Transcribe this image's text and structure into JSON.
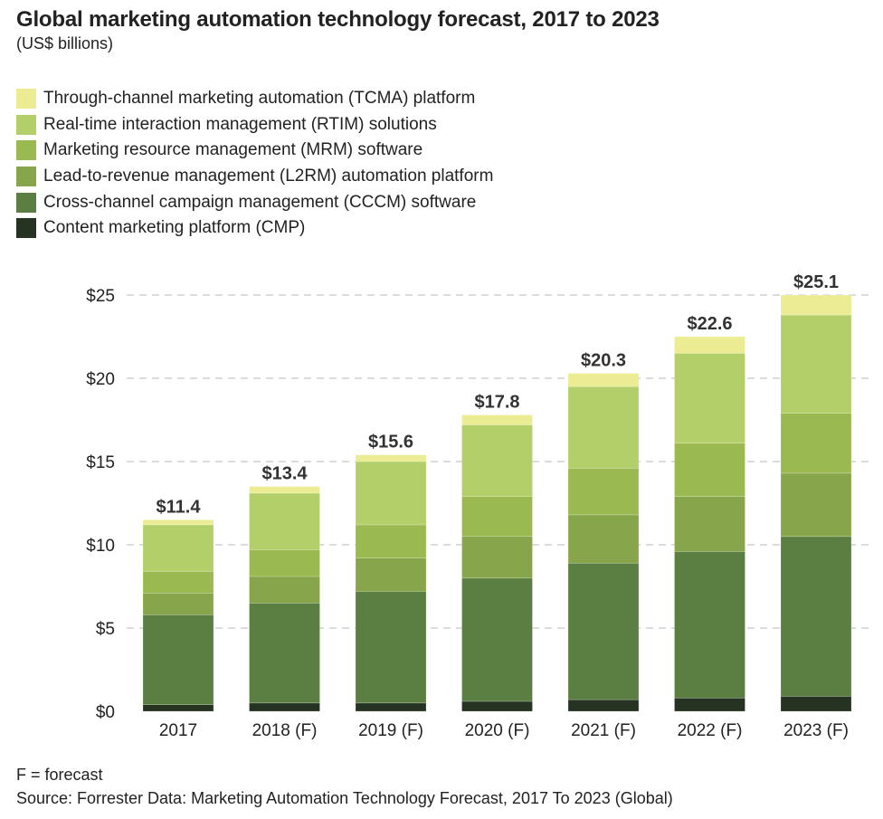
{
  "chart_data": {
    "type": "bar",
    "stacked": true,
    "title": "Global marketing automation technology forecast, 2017 to 2023",
    "subtitle": "(US$ billions)",
    "xlabel": "",
    "ylabel": "",
    "ylim": [
      0,
      25
    ],
    "yticks": [
      0,
      5,
      10,
      15,
      20,
      25
    ],
    "ytick_labels": [
      "$0",
      "$5",
      "$10",
      "$15",
      "$20",
      "$25"
    ],
    "grid": true,
    "legend_position": "top-left",
    "categories": [
      "2017",
      "2018 (F)",
      "2019 (F)",
      "2020 (F)",
      "2021 (F)",
      "2022 (F)",
      "2023 (F)"
    ],
    "totals": [
      11.4,
      13.4,
      15.6,
      17.8,
      20.3,
      22.6,
      25.1
    ],
    "total_labels": [
      "$11.4",
      "$13.4",
      "$15.6",
      "$17.8",
      "$20.3",
      "$22.6",
      "$25.1"
    ],
    "series": [
      {
        "name": "Content marketing platform (CMP)",
        "color": "#263222",
        "values": [
          0.4,
          0.5,
          0.5,
          0.6,
          0.7,
          0.8,
          0.9
        ]
      },
      {
        "name": "Cross-channel campaign management (CCCM) software",
        "color": "#5b7f42",
        "values": [
          5.4,
          6.0,
          6.7,
          7.4,
          8.2,
          8.8,
          9.6
        ]
      },
      {
        "name": "Lead-to-revenue management (L2RM) automation platform",
        "color": "#87a64b",
        "values": [
          1.3,
          1.6,
          2.0,
          2.5,
          2.9,
          3.3,
          3.8
        ]
      },
      {
        "name": "Marketing resource management (MRM) software",
        "color": "#9bb951",
        "values": [
          1.3,
          1.6,
          2.0,
          2.4,
          2.8,
          3.2,
          3.6
        ]
      },
      {
        "name": "Real-time interaction management (RTIM) solutions",
        "color": "#b2cf6a",
        "values": [
          2.8,
          3.4,
          3.8,
          4.3,
          4.9,
          5.4,
          5.9
        ]
      },
      {
        "name": "Through-channel marketing automation (TCMA) platform",
        "color": "#ecec94",
        "values": [
          0.3,
          0.4,
          0.4,
          0.6,
          0.8,
          1.0,
          1.2
        ]
      }
    ],
    "legend_order": [
      5,
      4,
      3,
      2,
      1,
      0
    ]
  },
  "footer": {
    "note": "F = forecast",
    "source": "Source: Forrester Data: Marketing Automation Technology Forecast, 2017 To 2023 (Global)"
  }
}
